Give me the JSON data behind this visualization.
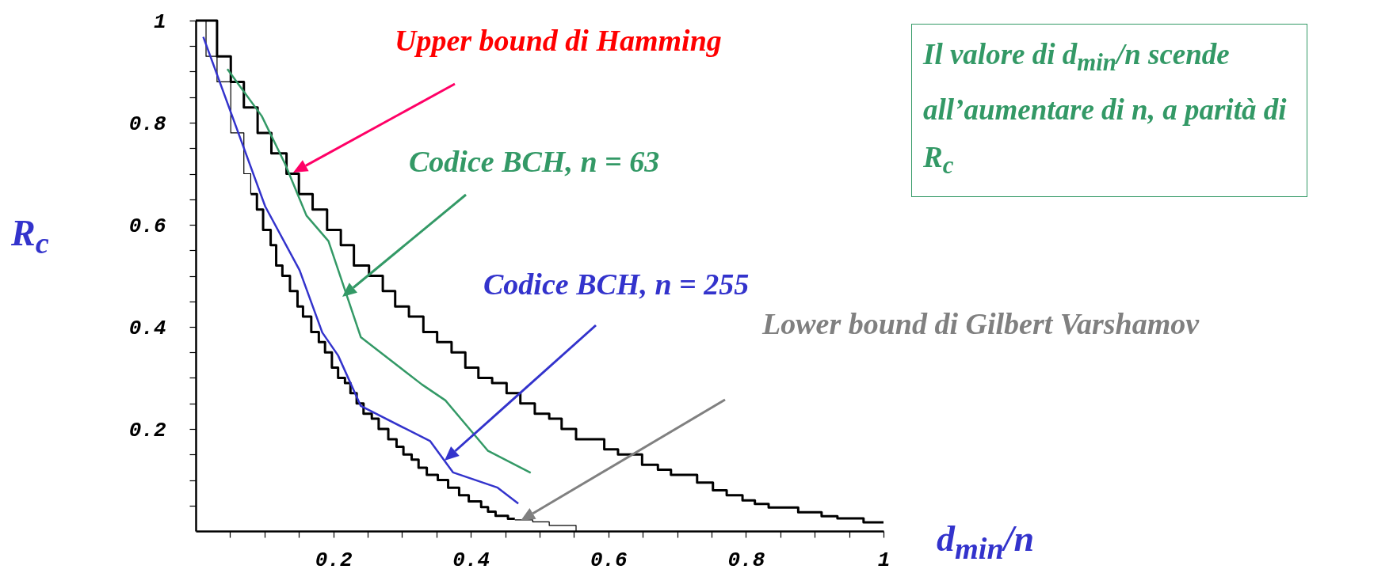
{
  "chart_data": {
    "type": "line",
    "xlabel": "d$_{min}$/n",
    "ylabel": "R$_{c}$",
    "xlim": [
      0,
      1
    ],
    "ylim": [
      0,
      1
    ],
    "xticks": [
      {
        "value": 0.05,
        "label": null
      },
      {
        "value": 0.1,
        "label": null
      },
      {
        "value": 0.15,
        "label": null
      },
      0.2,
      {
        "value": 0.25,
        "label": null
      },
      {
        "value": 0.3,
        "label": null
      },
      {
        "value": 0.35,
        "label": null
      },
      0.4,
      {
        "value": 0.45,
        "label": null
      },
      {
        "value": 0.5,
        "label": null
      },
      {
        "value": 0.55,
        "label": null
      },
      0.6,
      {
        "value": 0.65,
        "label": null
      },
      {
        "value": 0.7,
        "label": null
      },
      {
        "value": 0.75,
        "label": null
      },
      0.8,
      {
        "value": 0.85,
        "label": null
      },
      {
        "value": 0.9,
        "label": null
      },
      {
        "value": 0.95,
        "label": null
      },
      1
    ],
    "yticks": [
      {
        "value": 0.05,
        "label": null
      },
      {
        "value": 0.1,
        "label": null
      },
      {
        "value": 0.15,
        "label": null
      },
      0.2,
      {
        "value": 0.25,
        "label": null
      },
      {
        "value": 0.3,
        "label": null
      },
      {
        "value": 0.35,
        "label": null
      },
      0.4,
      {
        "value": 0.45,
        "label": null
      },
      {
        "value": 0.5,
        "label": null
      },
      {
        "value": 0.55,
        "label": null
      },
      0.6,
      {
        "value": 0.65,
        "label": null
      },
      {
        "value": 0.7,
        "label": null
      },
      {
        "value": 0.75,
        "label": null
      },
      0.8,
      {
        "value": 0.85,
        "label": null
      },
      {
        "value": 0.9,
        "label": null
      },
      {
        "value": 0.95,
        "label": null
      },
      1
    ],
    "series": [
      {
        "type": "step",
        "color": "#000000",
        "x": [
          0,
          0.031,
          0.051,
          0.07,
          0.09,
          0.11,
          0.132,
          0.15,
          0.17,
          0.191,
          0.211,
          0.23,
          0.252,
          0.272,
          0.29,
          0.31,
          0.331,
          0.351,
          0.372,
          0.392,
          0.411,
          0.431,
          0.452,
          0.472,
          0.493,
          0.514,
          0.532,
          0.553,
          0.594,
          0.614,
          0.649,
          0.672,
          0.691,
          0.729,
          0.752,
          0.772,
          0.795,
          0.813,
          0.833,
          0.876,
          0.91,
          0.933,
          0.971,
          1
        ],
        "values": [
          1,
          0.93,
          0.88,
          0.83,
          0.78,
          0.74,
          0.7,
          0.66,
          0.63,
          0.59,
          0.56,
          0.52,
          0.5,
          0.47,
          0.44,
          0.42,
          0.39,
          0.37,
          0.35,
          0.32,
          0.3,
          0.29,
          0.27,
          0.25,
          0.23,
          0.22,
          0.2,
          0.18,
          0.16,
          0.15,
          0.13,
          0.12,
          0.11,
          0.095,
          0.08,
          0.07,
          0.06,
          0.053,
          0.046,
          0.037,
          0.029,
          0.025,
          0.017,
          0.017
        ]
      },
      {
        "type": "step",
        "color": "#000000",
        "x": [
          0.08,
          0.089,
          0.098,
          0.109,
          0.117,
          0.126,
          0.137,
          0.148,
          0.156,
          0.168,
          0.179,
          0.188,
          0.198,
          0.207,
          0.217,
          0.225,
          0.234,
          0.244,
          0.256,
          0.266,
          0.28,
          0.292,
          0.302,
          0.314,
          0.324,
          0.336,
          0.352,
          0.367,
          0.383,
          0.397,
          0.415,
          0.425,
          0.436,
          0.454,
          0.464
        ],
        "values": [
          0.66,
          0.63,
          0.59,
          0.56,
          0.52,
          0.5,
          0.47,
          0.44,
          0.42,
          0.39,
          0.37,
          0.35,
          0.32,
          0.3,
          0.29,
          0.27,
          0.25,
          0.23,
          0.22,
          0.2,
          0.18,
          0.165,
          0.15,
          0.14,
          0.124,
          0.11,
          0.1,
          0.085,
          0.07,
          0.058,
          0.047,
          0.038,
          0.03,
          0.024,
          0.024
        ]
      },
      {
        "type": "step",
        "color": "#000000",
        "x": [
          0,
          0.015,
          0.031,
          0.051,
          0.07,
          0.08,
          0.1,
          0.464,
          0.49,
          0.514,
          0.553
        ],
        "values": [
          1,
          0.93,
          0.88,
          0.78,
          0.7,
          0.66,
          null,
          0.022,
          0.018,
          0.011,
          0
        ]
      },
      {
        "color": "#339966",
        "x": [
          0.046,
          0.096,
          0.13,
          0.161,
          0.193,
          0.24,
          0.329,
          0.363,
          0.425,
          0.487
        ],
        "values": [
          0.905,
          0.813,
          0.719,
          0.618,
          0.568,
          0.38,
          0.287,
          0.256,
          0.157,
          0.114
        ]
      },
      {
        "color": "#3333cc",
        "x": [
          0.011,
          0.101,
          0.151,
          0.184,
          0.207,
          0.24,
          0.341,
          0.374,
          0.439,
          0.469
        ],
        "values": [
          0.968,
          0.636,
          0.511,
          0.389,
          0.344,
          0.245,
          0.176,
          0.115,
          0.085,
          0.054
        ]
      }
    ],
    "annotations": [
      "Upper bound di Hamming",
      "Codice BCH, n = 63",
      "Codice BCH, n = 255",
      "Lower bound di Gilbert Varshamov",
      "Il valore di d$_{min}$/n scende all’aumentare di n, a parità di R$_{c}$"
    ]
  }
}
